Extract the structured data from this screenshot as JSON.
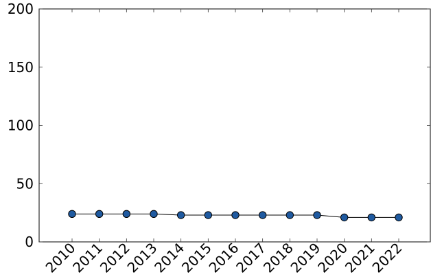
{
  "chart_data": {
    "type": "line",
    "title": "",
    "xlabel": "",
    "ylabel": "",
    "categories": [
      "2010",
      "2011",
      "2012",
      "2013",
      "2014",
      "2015",
      "2016",
      "2017",
      "2018",
      "2019",
      "2020",
      "2021",
      "2022"
    ],
    "series": [
      {
        "values": [
          24,
          24,
          24,
          24,
          23,
          23,
          23,
          23,
          23,
          23,
          21,
          21,
          21
        ],
        "color": "#1f5aa0"
      }
    ],
    "ylim": [
      0,
      200
    ],
    "yticks": [
      0,
      50,
      100,
      150,
      200
    ],
    "grid": false,
    "legend": "none"
  }
}
